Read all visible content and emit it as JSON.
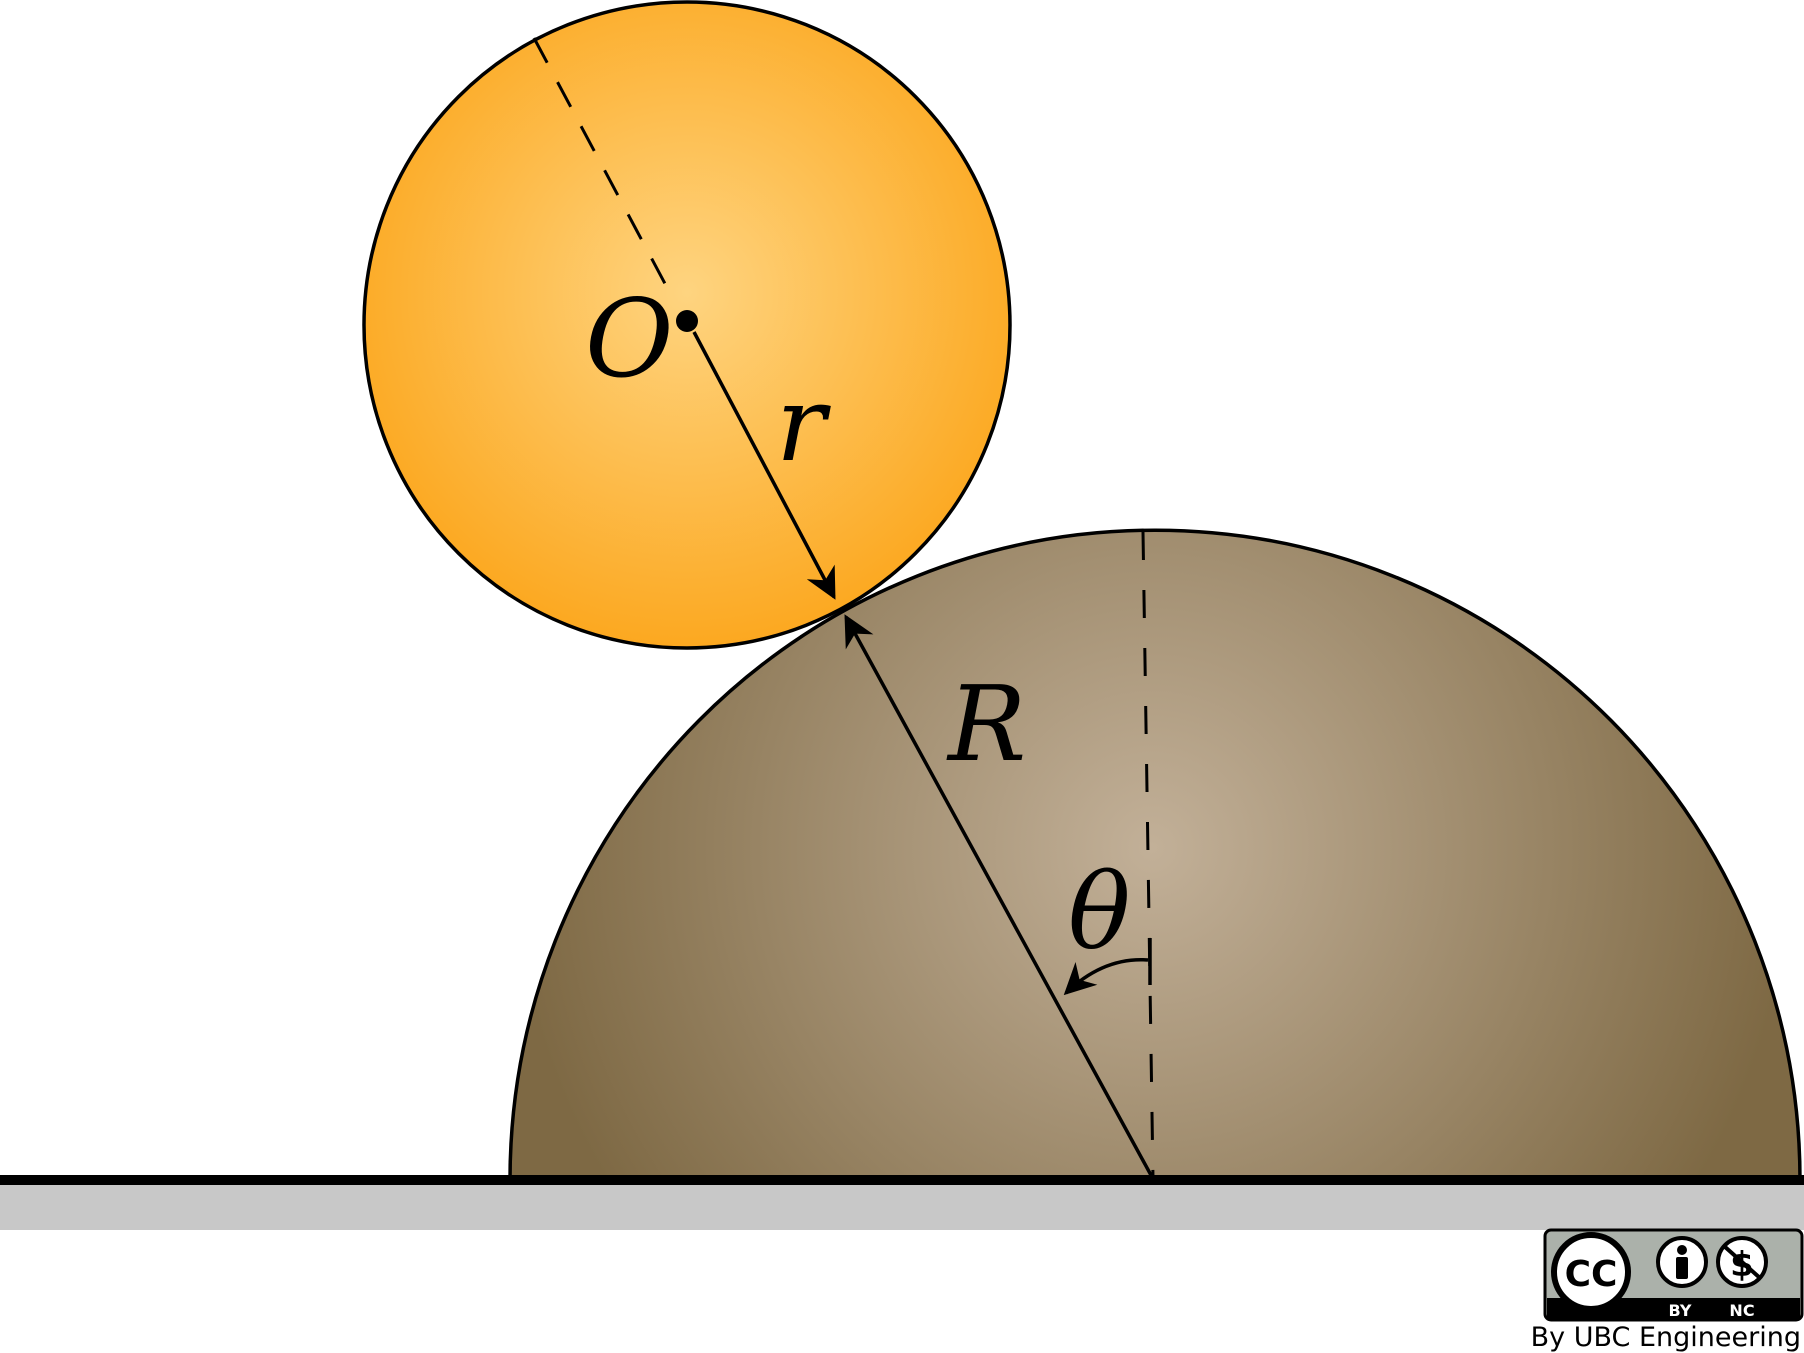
{
  "labels": {
    "center": "O",
    "small_radius": "r",
    "large_radius": "R",
    "angle": "θ"
  },
  "license": {
    "cc": "CC",
    "by": "BY",
    "nc": "NC",
    "credit": "By UBC Engineering"
  },
  "colors": {
    "small_ball_edge": "#fca820",
    "small_ball_center": "#fed480",
    "hemisphere_edge": "#7e6944",
    "hemisphere_center": "#c2b098",
    "ground": "#c8c8c8",
    "outline": "#000000"
  }
}
